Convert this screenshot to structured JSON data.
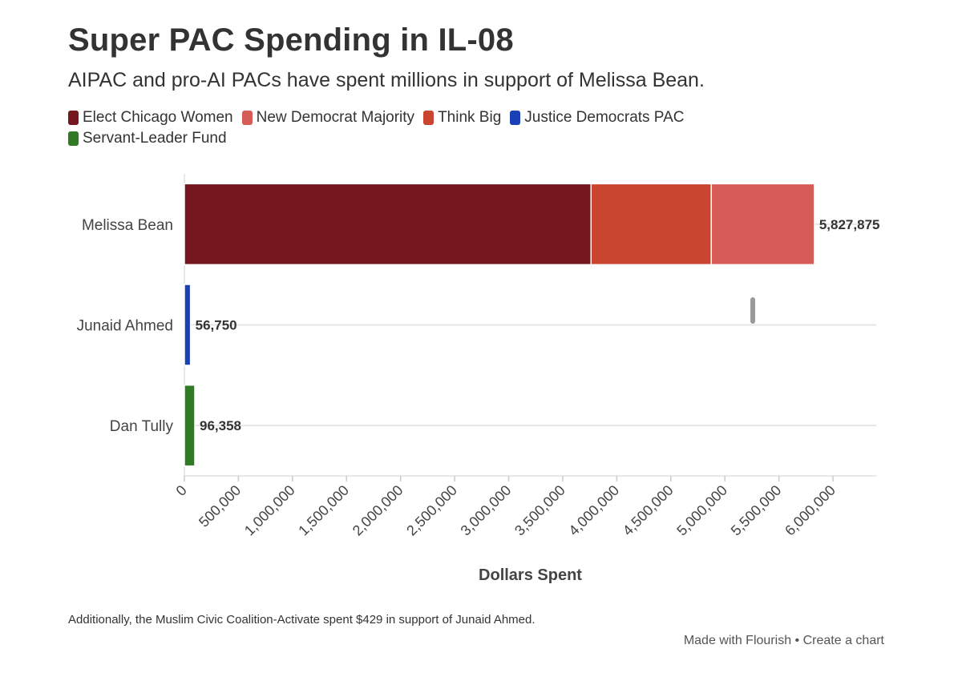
{
  "header": {
    "title": "Super PAC Spending in IL-08",
    "subtitle": "AIPAC and pro-AI PACs have spent millions in support of Melissa Bean."
  },
  "legend": [
    {
      "label": "Elect Chicago Women",
      "color": "#74171e"
    },
    {
      "label": "New Democrat Majority",
      "color": "#d65c57"
    },
    {
      "label": "Think Big",
      "color": "#c9452f"
    },
    {
      "label": "Justice Democrats PAC",
      "color": "#1b3fb5"
    },
    {
      "label": "Servant-Leader Fund",
      "color": "#2f7a22"
    }
  ],
  "chart_data": {
    "type": "bar",
    "orientation": "horizontal",
    "stacked": true,
    "categories": [
      "Melissa Bean",
      "Junaid Ahmed",
      "Dan Tully"
    ],
    "series": [
      {
        "name": "Elect Chicago Women",
        "color": "#74171e",
        "values": [
          3762000,
          0,
          0
        ]
      },
      {
        "name": "Think Big",
        "color": "#c9452f",
        "values": [
          1112000,
          0,
          0
        ]
      },
      {
        "name": "New Democrat Majority",
        "color": "#d65c57",
        "values": [
          953875,
          0,
          0
        ]
      },
      {
        "name": "Justice Democrats PAC",
        "color": "#1b3fb5",
        "values": [
          0,
          56750,
          0
        ]
      },
      {
        "name": "Servant-Leader Fund",
        "color": "#2f7a22",
        "values": [
          0,
          0,
          96358
        ]
      }
    ],
    "totals": [
      5827875,
      56750,
      96358
    ],
    "total_labels": [
      "5,827,875",
      "56,750",
      "96,358"
    ],
    "xlim": [
      0,
      6400000
    ],
    "xticks": [
      0,
      500000,
      1000000,
      1500000,
      2000000,
      2500000,
      3000000,
      3500000,
      4000000,
      4500000,
      5000000,
      5500000,
      6000000
    ],
    "xtick_labels": [
      "0",
      "500,000",
      "1,000,000",
      "1,500,000",
      "2,000,000",
      "2,500,000",
      "3,000,000",
      "3,500,000",
      "4,000,000",
      "4,500,000",
      "5,000,000",
      "5,500,000",
      "6,000,000"
    ],
    "xlabel": "Dollars Spent",
    "ylabel": "",
    "grid": true,
    "legend_position": "top"
  },
  "footnote": "Additionally, the Muslim Civic Coalition-Activate spent $429 in support of Junaid Ahmed.",
  "credit": {
    "made_with": "Made with Flourish",
    "separator": "•",
    "create": "Create a chart"
  }
}
